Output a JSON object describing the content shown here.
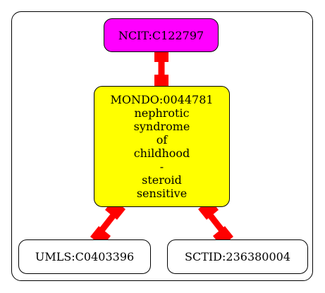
{
  "diagram": {
    "nodes": {
      "ncit": {
        "label": "NCIT:C122797",
        "fill": "#ff00ff"
      },
      "mondo": {
        "fill": "#ffff00",
        "lines": [
          "MONDO:0044781",
          "nephrotic",
          "syndrome",
          "of",
          "childhood",
          "-",
          "steroid",
          "sensitive"
        ]
      },
      "umls": {
        "label": "UMLS:C0403396",
        "fill": "#ffffff"
      },
      "sctid": {
        "label": "SCTID:236380004",
        "fill": "#ffffff"
      }
    },
    "edge_color": "#ff0000",
    "edges": [
      {
        "from": "ncit",
        "to": "mondo"
      },
      {
        "from": "mondo",
        "to": "umls"
      },
      {
        "from": "mondo",
        "to": "sctid"
      }
    ]
  }
}
